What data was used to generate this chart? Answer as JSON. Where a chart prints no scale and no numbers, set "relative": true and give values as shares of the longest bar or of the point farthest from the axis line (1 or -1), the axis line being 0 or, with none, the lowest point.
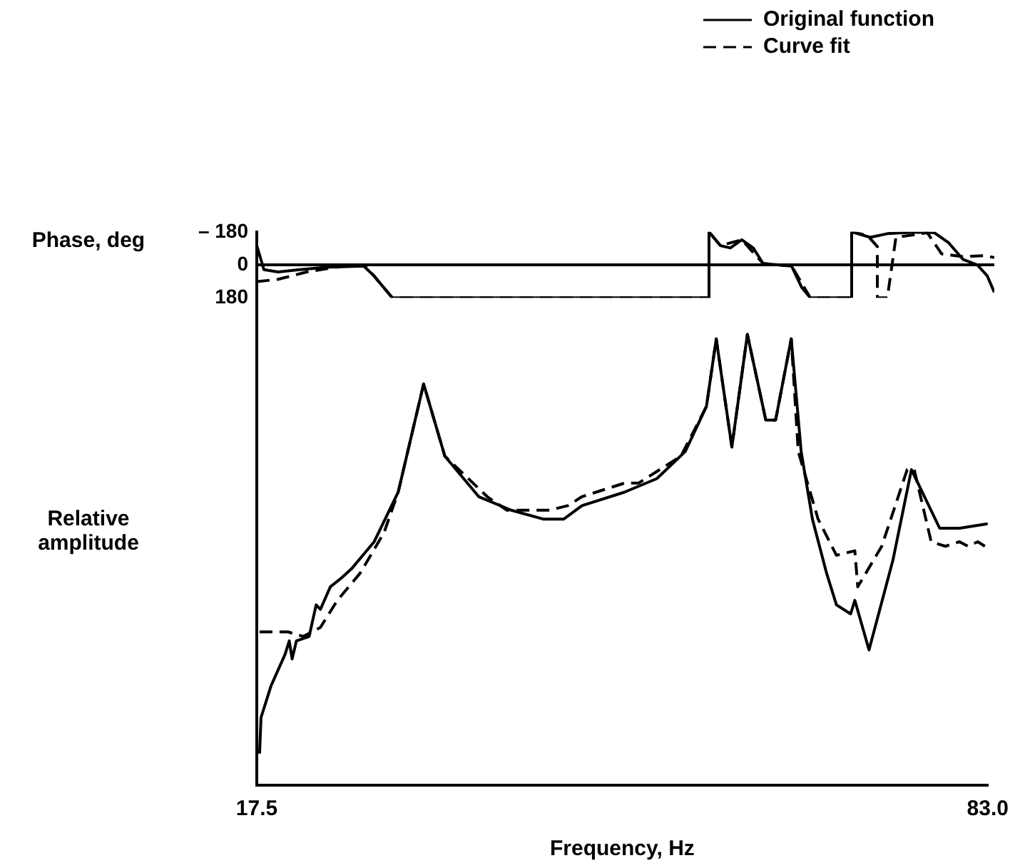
{
  "chart_data": [
    {
      "type": "line",
      "ylabel": "Phase, deg",
      "xlim": [
        17.5,
        83.0
      ],
      "ylim": [
        180,
        -180
      ],
      "yticks": [
        {
          "value": -180,
          "label": "– 180"
        },
        0,
        180
      ],
      "tick_labels": "y",
      "grid": false,
      "legend": "top right",
      "marker": "none",
      "ref_lines": [
        {
          "axis": "y",
          "value": 0,
          "color": "#000000"
        }
      ],
      "series": [
        {
          "name": "Original function",
          "color": "#000000",
          "line_style": "solid",
          "x": [
            17.5,
            18.13,
            19.4,
            21.3,
            23.83,
            27.0,
            27.89,
            29.54,
            57.66,
            57.66,
            58.67,
            59.56,
            60.57,
            61.59,
            62.47,
            65.0,
            65.9,
            66.66,
            70.33,
            70.33,
            71.98,
            73.5,
            75.78,
            77.68,
            78.95,
            80.21,
            81.48,
            82.37,
            83.0
          ],
          "values": [
            -105,
            26,
            39,
            26,
            13,
            7,
            59,
            180,
            180,
            -180,
            -105,
            -92,
            -137,
            -92,
            -7,
            7,
            124,
            180,
            180,
            -180,
            -150,
            -170,
            -178,
            -175,
            -120,
            -30,
            0,
            60,
            150
          ]
        },
        {
          "name": "Curve fit",
          "color": "#000000",
          "line_style": "dashed",
          "x": [
            17.5,
            19.4,
            21.93,
            25.1,
            27.0,
            27.89,
            29.54,
            57.66,
            57.66,
            58.67,
            60.57,
            62.47,
            65.0,
            66.66,
            70.33,
            70.33,
            71.73,
            72.61,
            72.61,
            73.5,
            74.26,
            77.05,
            78.32,
            80.21,
            82.11,
            83.0
          ],
          "values": [
            92,
            79,
            39,
            7,
            0,
            59,
            180,
            180,
            -180,
            -105,
            -137,
            -7,
            7,
            180,
            180,
            -180,
            -160,
            -100,
            180,
            180,
            -150,
            -175,
            -60,
            -45,
            -50,
            -40
          ]
        }
      ]
    },
    {
      "type": "line",
      "ylabel": "Relative amplitude",
      "xlabel": "Frequency, Hz",
      "relative": true,
      "xlim": [
        17.5,
        83.0
      ],
      "xticks": [
        17.5,
        {
          "value": 83.0,
          "label": "83.0"
        }
      ],
      "grid": false,
      "marker": "none",
      "series": [
        {
          "color": "#000000",
          "line_style": "solid",
          "x": [
            17.75,
            17.88,
            18.77,
            20.03,
            20.41,
            20.67,
            21.05,
            22.19,
            22.82,
            23.2,
            24.09,
            25.1,
            25.99,
            28.02,
            30.17,
            32.45,
            34.35,
            37.39,
            40.3,
            43.22,
            44.99,
            46.64,
            50.44,
            53.35,
            55.89,
            57.79,
            58.67,
            60.07,
            61.46,
            63.11,
            63.99,
            65.39,
            66.28,
            67.29,
            68.56,
            69.44,
            70.71,
            71.09,
            72.36,
            74.51,
            76.16,
            78.69,
            80.47,
            83.0
          ],
          "values": [
            0.07,
            0.15,
            0.22,
            0.29,
            0.32,
            0.28,
            0.32,
            0.33,
            0.4,
            0.39,
            0.44,
            0.46,
            0.48,
            0.54,
            0.65,
            0.89,
            0.73,
            0.64,
            0.61,
            0.59,
            0.59,
            0.62,
            0.65,
            0.68,
            0.74,
            0.84,
            0.99,
            0.75,
            1,
            0.81,
            0.81,
            0.99,
            0.74,
            0.59,
            0.47,
            0.4,
            0.38,
            0.41,
            0.3,
            0.5,
            0.7,
            0.57,
            0.57,
            0.58
          ]
        },
        {
          "color": "#000000",
          "line_style": "dashed",
          "x": [
            17.75,
            20.29,
            21.68,
            23.2,
            24.72,
            26.75,
            28.9,
            30.17,
            32.45,
            34.35,
            38.15,
            39.92,
            43.72,
            45.37,
            46.64,
            50.44,
            51.71,
            55.51,
            57.79,
            58.67,
            60.07,
            61.46,
            63.11,
            63.99,
            65.39,
            66.02,
            67.8,
            69.44,
            71.09,
            71.35,
            73.5,
            75.78,
            76.41,
            77.93,
            79.2,
            80.47,
            81.22,
            82.11,
            82.74
          ],
          "values": [
            0.34,
            0.34,
            0.33,
            0.35,
            0.41,
            0.47,
            0.56,
            0.65,
            0.89,
            0.73,
            0.64,
            0.61,
            0.61,
            0.62,
            0.64,
            0.67,
            0.67,
            0.73,
            0.84,
            0.99,
            0.75,
            1,
            0.81,
            0.81,
            0.99,
            0.74,
            0.59,
            0.51,
            0.52,
            0.44,
            0.53,
            0.7,
            0.7,
            0.54,
            0.53,
            0.54,
            0.53,
            0.54,
            0.53
          ]
        }
      ]
    }
  ]
}
